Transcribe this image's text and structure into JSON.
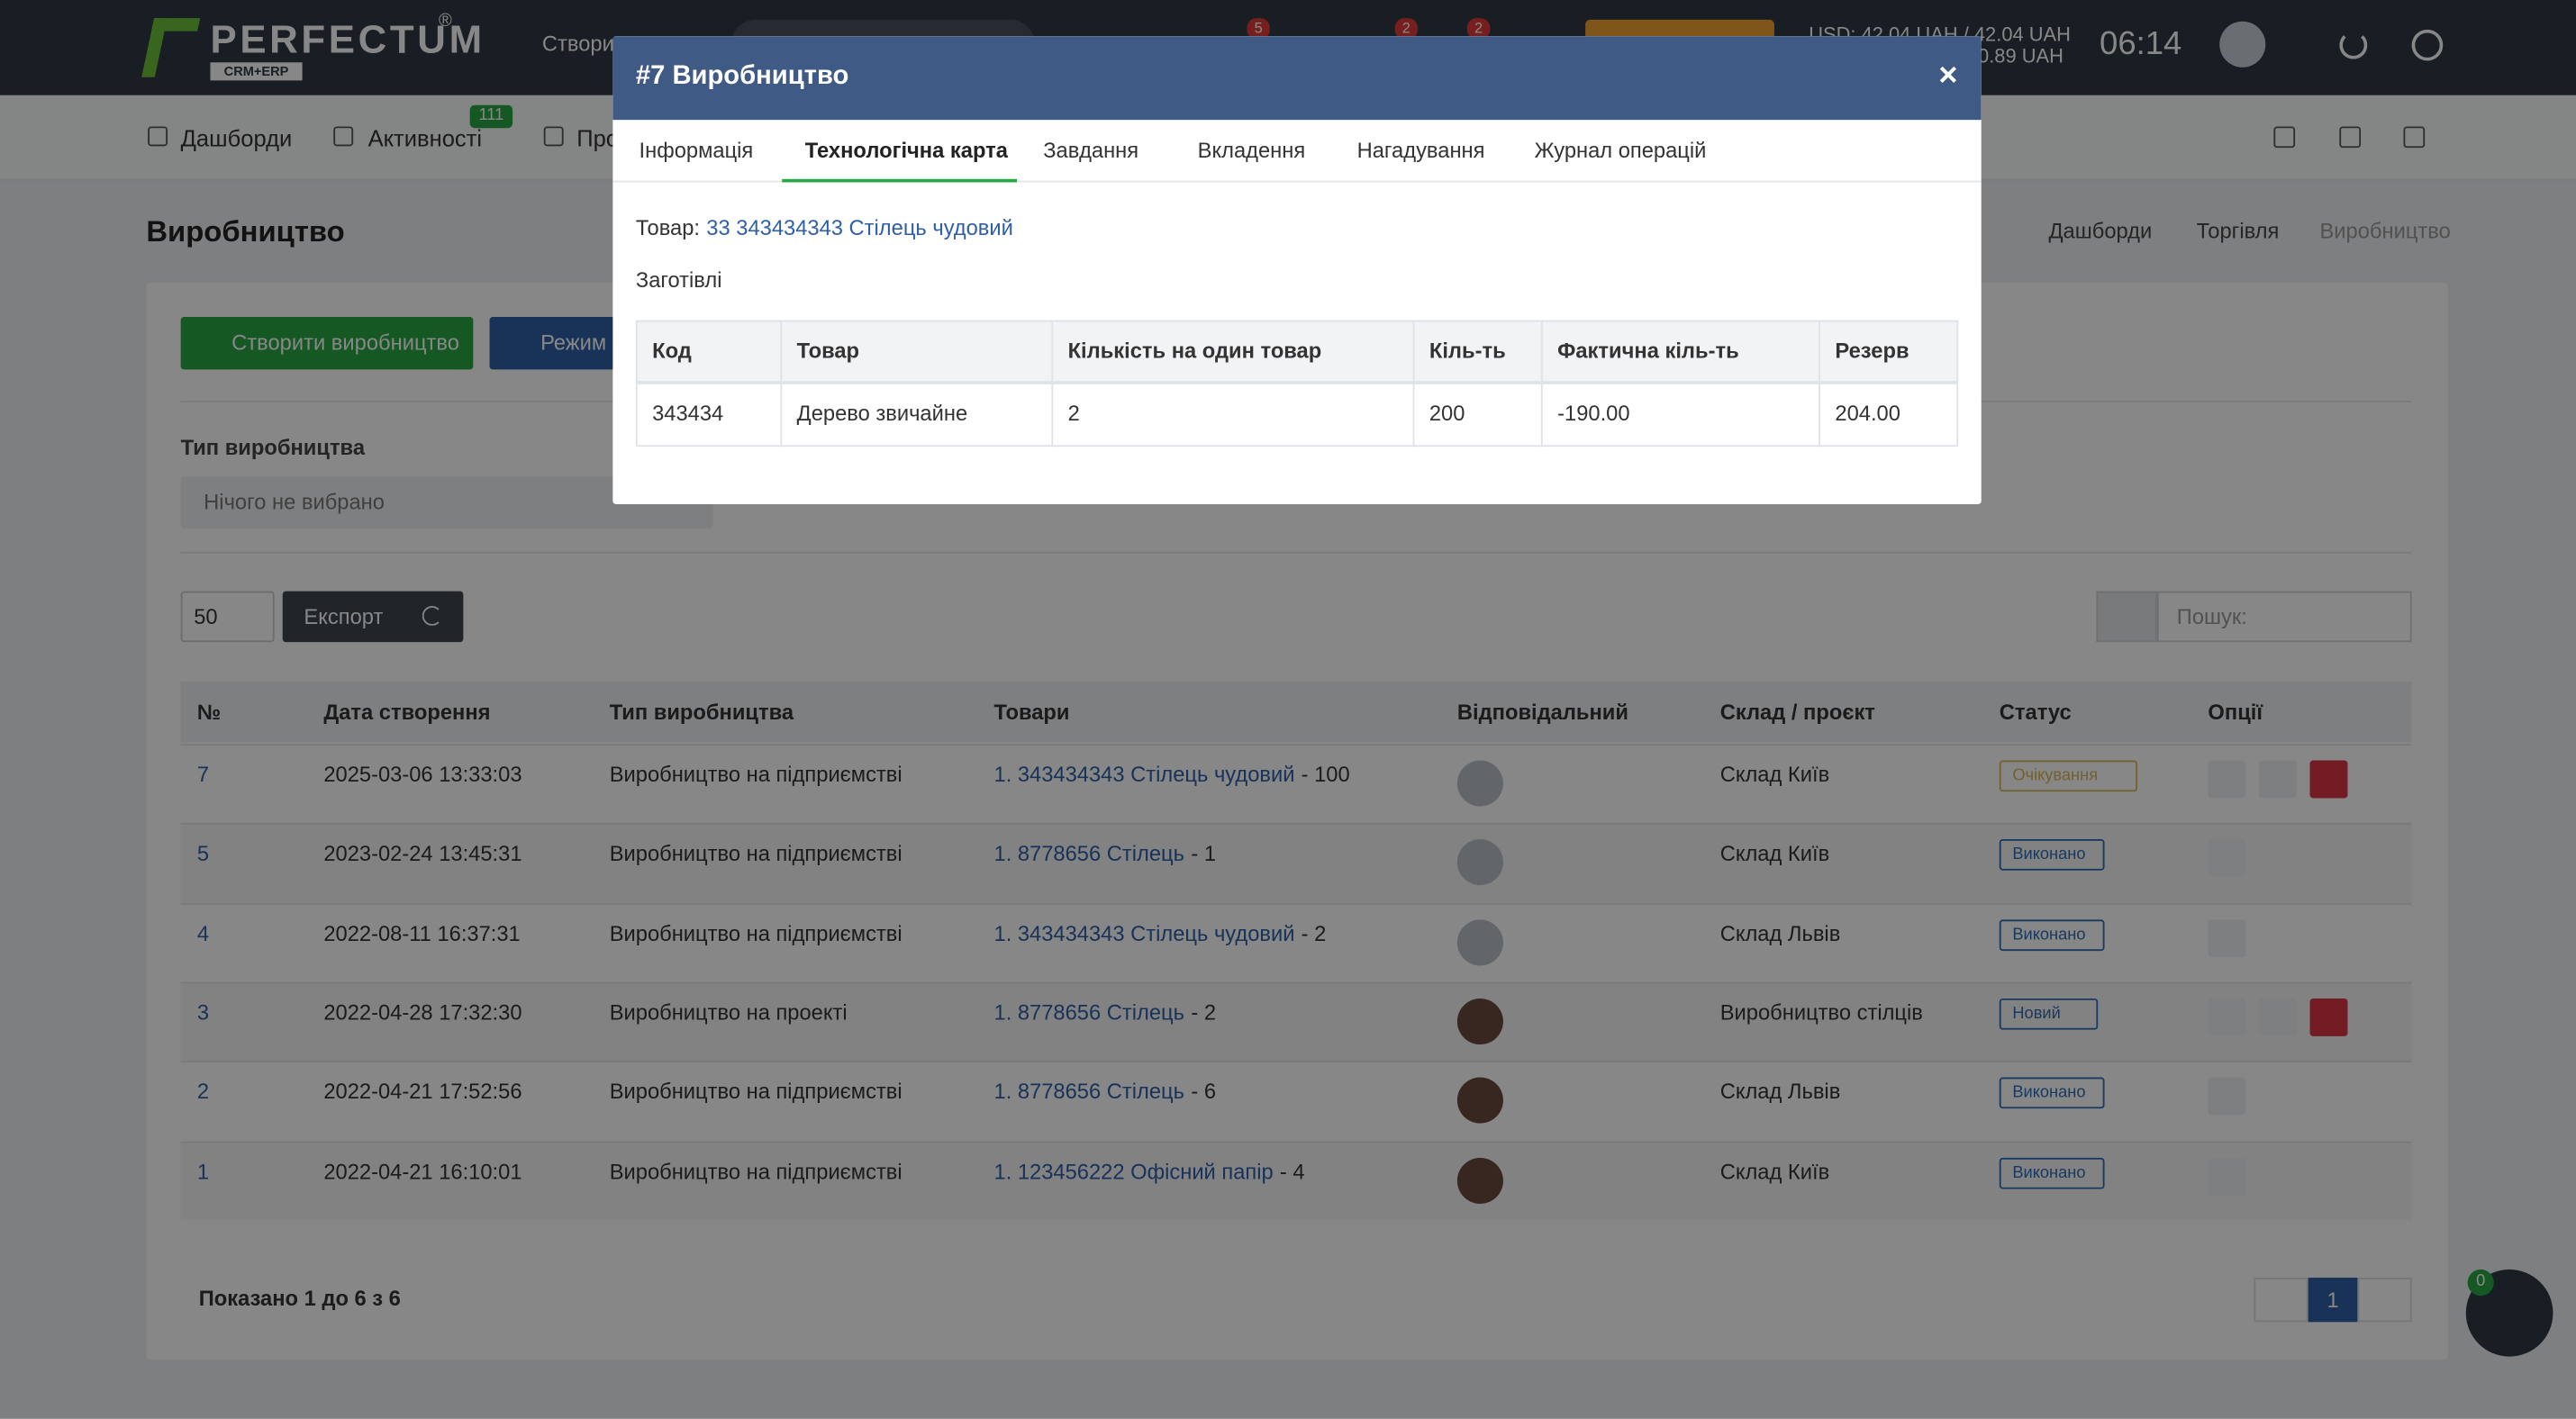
{
  "header": {
    "logo": "PERFECTUM",
    "logo_mark": "®",
    "logo_sub": "CRM+ERP",
    "create": "Створити",
    "badges": [
      "5",
      "2",
      "2"
    ],
    "currency_line1": "USD: 42.04 UAH / 42.04 UAH",
    "currency_line2": "0.89 UAH",
    "time": "06:14"
  },
  "nav": {
    "items": [
      "Дашборди",
      "Активності",
      "Про"
    ],
    "activity_badge": "111"
  },
  "page": {
    "title": "Виробництво",
    "breadcrumbs": [
      "Дашборди",
      "Торгівля",
      "Виробництво"
    ]
  },
  "toolbar": {
    "create_button": "Створити виробництво",
    "mode_button": "Режим"
  },
  "filter": {
    "label": "Тип виробництва",
    "placeholder": "Нічого не вибрано"
  },
  "controls": {
    "page_size": "50",
    "export": "Експорт",
    "search_placeholder": "Пошук:"
  },
  "table": {
    "columns": [
      "№",
      "Дата створення",
      "Тип виробництва",
      "Товари",
      "Відповідальний",
      "Склад / проєкт",
      "Статус",
      "Опції"
    ],
    "rows": [
      {
        "id": "7",
        "date": "2025-03-06 13:33:03",
        "type": "Виробництво на підприємстві",
        "product": "1. 343434343 Стілець чудовий",
        "qty": "- 100",
        "stock": "Склад Київ",
        "status": "Очікування"
      },
      {
        "id": "5",
        "date": "2023-02-24 13:45:31",
        "type": "Виробництво на підприємстві",
        "product": "1. 8778656 Стілець",
        "qty": "- 1",
        "stock": "Склад Київ",
        "status": "Виконано"
      },
      {
        "id": "4",
        "date": "2022-08-11 16:37:31",
        "type": "Виробництво на підприємстві",
        "product": "1. 343434343 Стілець чудовий",
        "qty": "- 2",
        "stock": "Склад Львів",
        "status": "Виконано"
      },
      {
        "id": "3",
        "date": "2022-04-28 17:32:30",
        "type": "Виробництво на проекті",
        "product": "1. 8778656 Стілець",
        "qty": "- 2",
        "stock": "Виробництво стілців",
        "status": "Новий"
      },
      {
        "id": "2",
        "date": "2022-04-21 17:52:56",
        "type": "Виробництво на підприємстві",
        "product": "1. 8778656 Стілець",
        "qty": "- 6",
        "stock": "Склад Львів",
        "status": "Виконано"
      },
      {
        "id": "1",
        "date": "2022-04-21 16:10:01",
        "type": "Виробництво на підприємстві",
        "product": "1. 123456222 Офісний папір",
        "qty": "- 4",
        "stock": "Склад Київ",
        "status": "Виконано"
      }
    ]
  },
  "footer": {
    "summary": "Показано 1 до 6 з 6",
    "page": "1"
  },
  "chat": {
    "badge": "0"
  },
  "modal": {
    "title": "#7 Виробництво",
    "close": "×",
    "tabs": [
      "Інформація",
      "Технологічна карта",
      "Завдання",
      "Вкладення",
      "Нагадування",
      "Журнал операцій"
    ],
    "active_tab": 1,
    "product_label": "Товар:",
    "product_link": "33 343434343 Стілець чудовий",
    "section": "Заготівлі",
    "table": {
      "columns": [
        "Код",
        "Товар",
        "Кількість на один товар",
        "Кіль-ть",
        "Фактична кіль-ть",
        "Резерв"
      ],
      "rows": [
        [
          "343434",
          "Дерево звичайне",
          "2",
          "200",
          "-190.00",
          "204.00"
        ]
      ]
    }
  }
}
